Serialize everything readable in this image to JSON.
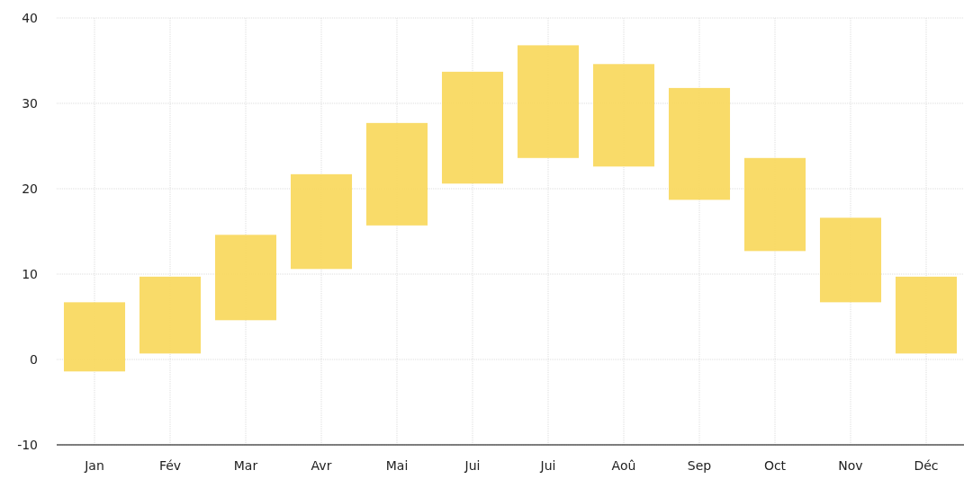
{
  "chart_data": {
    "type": "bar",
    "categories": [
      "Jan",
      "Fév",
      "Mar",
      "Avr",
      "Mai",
      "Jui",
      "Jui",
      "Aoû",
      "Sep",
      "Oct",
      "Nov",
      "Déc"
    ],
    "base": [
      -1.4,
      0.7,
      4.6,
      10.6,
      15.7,
      20.6,
      23.6,
      22.6,
      18.7,
      12.7,
      6.7,
      0.7
    ],
    "values": [
      8.1,
      9.0,
      10.0,
      11.1,
      12.0,
      13.1,
      13.2,
      12.0,
      13.1,
      10.9,
      9.9,
      9.0
    ],
    "color": "#f8d85c",
    "ylim": [
      -10,
      40
    ],
    "yticks": [
      -10,
      0,
      10,
      20,
      30,
      40
    ],
    "grid": true
  }
}
